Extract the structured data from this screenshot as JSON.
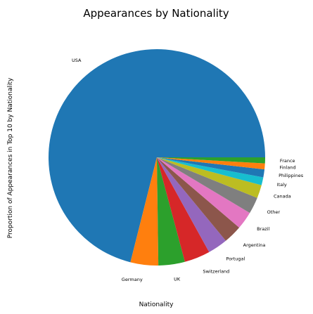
{
  "chart_data": {
    "type": "pie",
    "title": "Appearances by Nationality",
    "xlabel": "Nationality",
    "ylabel": "Proportion of Appearances in Top 10 by Nationality",
    "start_angle_deg": 0,
    "direction": "counterclockwise",
    "slices": [
      {
        "label": "USA",
        "value": 72.0,
        "color": "#1f77b4"
      },
      {
        "label": "Germany",
        "value": 4.2,
        "color": "#ff7f0e"
      },
      {
        "label": "UK",
        "value": 4.0,
        "color": "#2ca02c"
      },
      {
        "label": "Switzerland",
        "value": 3.9,
        "color": "#d62728"
      },
      {
        "label": "Portugal",
        "value": 3.0,
        "color": "#9467bd"
      },
      {
        "label": "Argentina",
        "value": 2.8,
        "color": "#8c564b"
      },
      {
        "label": "Brazil",
        "value": 2.7,
        "color": "#e377c2"
      },
      {
        "label": "Other",
        "value": 2.5,
        "color": "#7f7f7f"
      },
      {
        "label": "Canada",
        "value": 2.0,
        "color": "#bcbd22"
      },
      {
        "label": "Italy",
        "value": 1.2,
        "color": "#17becf"
      },
      {
        "label": "Philippines",
        "value": 1.2,
        "color": "#1f77b4"
      },
      {
        "label": "Finland",
        "value": 0.9,
        "color": "#ff7f0e"
      },
      {
        "label": "France",
        "value": 0.9,
        "color": "#2ca02c"
      }
    ]
  }
}
